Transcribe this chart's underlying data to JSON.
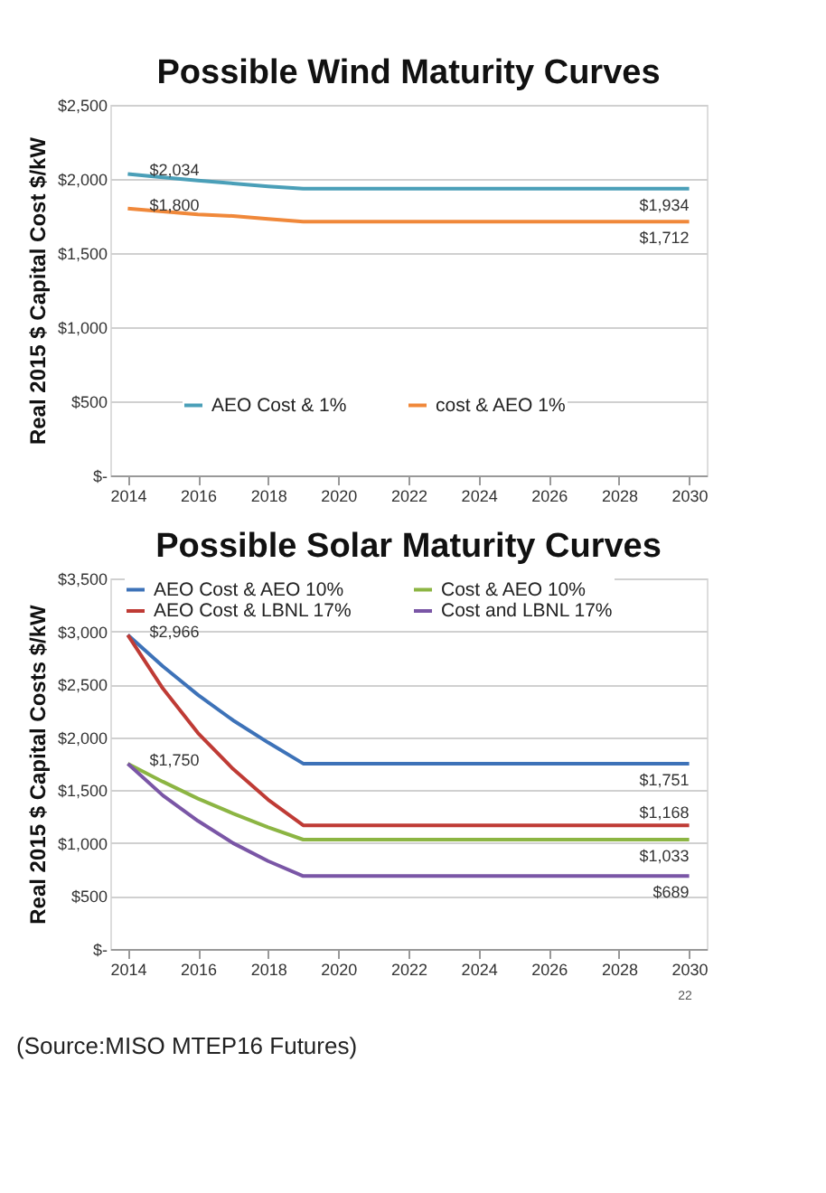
{
  "chart_data": [
    {
      "type": "line",
      "title": "Possible Wind Maturity Curves",
      "ylabel": "Real 2015 $ Capital Cost $/kW",
      "x": [
        2014,
        2015,
        2016,
        2017,
        2018,
        2019,
        2020,
        2021,
        2022,
        2023,
        2024,
        2025,
        2026,
        2027,
        2028,
        2029,
        2030
      ],
      "series": [
        {
          "name": "AEO Cost & 1%",
          "color": "#4a9fb8",
          "values": [
            2034,
            2010,
            1990,
            1970,
            1950,
            1934,
            1934,
            1934,
            1934,
            1934,
            1934,
            1934,
            1934,
            1934,
            1934,
            1934,
            1934
          ],
          "value_labels": [
            "$2,034",
            null,
            null,
            null,
            null,
            null,
            null,
            null,
            null,
            null,
            null,
            null,
            null,
            null,
            null,
            null,
            "$1,934"
          ]
        },
        {
          "name": "cost & AEO 1%",
          "color": "#f0883a",
          "values": [
            1800,
            1780,
            1760,
            1750,
            1730,
            1712,
            1712,
            1712,
            1712,
            1712,
            1712,
            1712,
            1712,
            1712,
            1712,
            1712,
            1712
          ],
          "value_labels": [
            "$1,800",
            null,
            null,
            null,
            null,
            null,
            null,
            null,
            null,
            null,
            null,
            null,
            null,
            null,
            null,
            null,
            "$1,712"
          ]
        }
      ],
      "xlim": [
        2013.5,
        2030.5
      ],
      "xticks": [
        2014,
        2016,
        2018,
        2020,
        2022,
        2024,
        2026,
        2028,
        2030
      ],
      "ylim": [
        0,
        2500
      ],
      "yticks": [
        {
          "value": 0,
          "label": "$-"
        },
        {
          "value": 500,
          "label": "$500"
        },
        {
          "value": 1000,
          "label": "$1,000"
        },
        {
          "value": 1500,
          "label": "$1,500"
        },
        {
          "value": 2000,
          "label": "$2,000"
        },
        {
          "value": 2500,
          "label": "$2,500"
        }
      ],
      "grid": "y",
      "legend": "bottom",
      "marker": "none",
      "line_style": "solid"
    },
    {
      "type": "line",
      "title": "Possible Solar Maturity Curves",
      "ylabel": "Real 2015 $ Capital Costs $/kW",
      "x": [
        2014,
        2015,
        2016,
        2017,
        2018,
        2019,
        2020,
        2021,
        2022,
        2023,
        2024,
        2025,
        2026,
        2027,
        2028,
        2029,
        2030
      ],
      "series": [
        {
          "name": "AEO Cost & AEO 10%",
          "color": "#3d72b8",
          "values": [
            2966,
            2670,
            2400,
            2160,
            1950,
            1751,
            1751,
            1751,
            1751,
            1751,
            1751,
            1751,
            1751,
            1751,
            1751,
            1751,
            1751
          ],
          "value_labels": [
            "$2,966",
            null,
            null,
            null,
            null,
            null,
            null,
            null,
            null,
            null,
            null,
            null,
            null,
            null,
            null,
            null,
            "$1,751"
          ]
        },
        {
          "name": "AEO Cost & LBNL 17%",
          "color": "#bf3b35",
          "values": [
            2966,
            2460,
            2040,
            1700,
            1410,
            1168,
            1168,
            1168,
            1168,
            1168,
            1168,
            1168,
            1168,
            1168,
            1168,
            1168,
            1168
          ],
          "value_labels": [
            null,
            null,
            null,
            null,
            null,
            null,
            null,
            null,
            null,
            null,
            null,
            null,
            null,
            null,
            null,
            null,
            "$1,168"
          ]
        },
        {
          "name": "Cost & AEO 10%",
          "color": "#8cb543",
          "values": [
            1750,
            1580,
            1420,
            1280,
            1150,
            1033,
            1033,
            1033,
            1033,
            1033,
            1033,
            1033,
            1033,
            1033,
            1033,
            1033,
            1033
          ],
          "value_labels": [
            "$1,750",
            null,
            null,
            null,
            null,
            null,
            null,
            null,
            null,
            null,
            null,
            null,
            null,
            null,
            null,
            null,
            "$1,033"
          ]
        },
        {
          "name": "Cost and LBNL 17%",
          "color": "#7a56a6",
          "values": [
            1750,
            1450,
            1210,
            1000,
            830,
            689,
            689,
            689,
            689,
            689,
            689,
            689,
            689,
            689,
            689,
            689,
            689
          ],
          "value_labels": [
            null,
            null,
            null,
            null,
            null,
            null,
            null,
            null,
            null,
            null,
            null,
            null,
            null,
            null,
            null,
            null,
            "$689"
          ]
        }
      ],
      "xlim": [
        2013.5,
        2030.5
      ],
      "xticks": [
        2014,
        2016,
        2018,
        2020,
        2022,
        2024,
        2026,
        2028,
        2030
      ],
      "ylim": [
        0,
        3500
      ],
      "yticks": [
        {
          "value": 0,
          "label": "$-"
        },
        {
          "value": 500,
          "label": "$500"
        },
        {
          "value": 1000,
          "label": "$1,000"
        },
        {
          "value": 1500,
          "label": "$1,500"
        },
        {
          "value": 2000,
          "label": "$2,000"
        },
        {
          "value": 2500,
          "label": "$2,500"
        },
        {
          "value": 3000,
          "label": "$3,000"
        },
        {
          "value": 3500,
          "label": "$3,500"
        }
      ],
      "grid": "y",
      "legend": "top",
      "marker": "none",
      "line_style": "solid",
      "annotations": [
        "22",
        "(Source:MISO MTEP16 Futures)"
      ]
    }
  ]
}
